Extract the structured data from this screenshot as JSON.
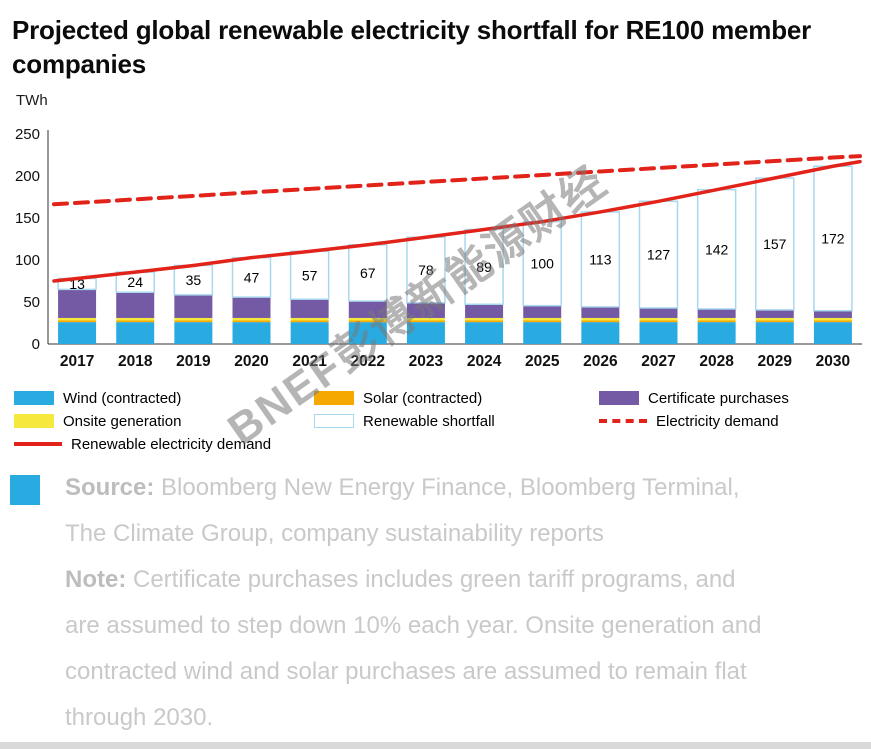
{
  "header": {
    "title": "Projected global renewable electricity shortfall for RE100 member companies"
  },
  "chart_data": {
    "type": "bar",
    "stacked": true,
    "title": "Projected global renewable electricity shortfall for RE100 member companies",
    "xlabel": "",
    "ylabel": "TWh",
    "ylim": [
      0,
      250
    ],
    "yticks": [
      0,
      50,
      100,
      150,
      200,
      250
    ],
    "grid": false,
    "legend_position": "bottom",
    "categories": [
      "2017",
      "2018",
      "2019",
      "2020",
      "2021",
      "2022",
      "2023",
      "2024",
      "2025",
      "2026",
      "2027",
      "2028",
      "2029",
      "2030"
    ],
    "series": [
      {
        "id": "wind",
        "name": "Wind (contracted)",
        "color": "#29ABE2",
        "values": [
          26,
          26,
          26,
          26,
          26,
          26,
          26,
          26,
          26,
          26,
          26,
          26,
          26,
          26
        ]
      },
      {
        "id": "solar",
        "name": "Solar (contracted)",
        "color": "#F5A800",
        "values": [
          2,
          2,
          2,
          2,
          2,
          2,
          2,
          2,
          2,
          2,
          2,
          2,
          2,
          2
        ]
      },
      {
        "id": "onsite",
        "name": "Onsite generation",
        "color": "#F7E83E",
        "values": [
          3,
          3,
          3,
          3,
          3,
          3,
          3,
          3,
          3,
          3,
          3,
          3,
          3,
          3
        ]
      },
      {
        "id": "certificates",
        "name": "Certificate purchases",
        "color": "#7459A5",
        "values": [
          34,
          30.6,
          27.5,
          24.8,
          22.3,
          20.1,
          18.1,
          16.3,
          14.6,
          13.2,
          11.9,
          10.7,
          9.6,
          8.6
        ]
      },
      {
        "id": "shortfall",
        "name": "Renewable shortfall",
        "color": "#FFFFFF",
        "stroke": "#A9D7EE",
        "values": [
          13,
          24,
          35,
          47,
          57,
          67,
          78,
          89,
          100,
          113,
          127,
          142,
          157,
          172
        ]
      }
    ],
    "bar_labels": [
      13,
      24,
      35,
      47,
      57,
      67,
      78,
      89,
      100,
      113,
      127,
      142,
      157,
      172
    ],
    "lines": [
      {
        "id": "renewable-demand",
        "name": "Renewable electricity demand",
        "style": "solid",
        "color": "#E2231A",
        "values": [
          78,
          85.6,
          93.5,
          102.8,
          110.3,
          118.1,
          127.1,
          136.3,
          145.6,
          157.2,
          169.9,
          183.7,
          197.6,
          211.6
        ]
      },
      {
        "id": "electricity-demand",
        "name": "Electricity demand",
        "style": "dashed",
        "color": "#E2231A",
        "values": [
          168,
          172.2,
          176.3,
          180.5,
          184.6,
          188.8,
          192.9,
          197.1,
          201.2,
          205.4,
          209.5,
          213.7,
          217.8,
          222
        ]
      }
    ]
  },
  "legend": {
    "items": [
      {
        "id": "wind",
        "label": "Wind (contracted)",
        "swatch": "rect",
        "color": "#29ABE2"
      },
      {
        "id": "solar",
        "label": "Solar (contracted)",
        "swatch": "rect",
        "color": "#F5A800"
      },
      {
        "id": "certificates",
        "label": "Certificate purchases",
        "swatch": "rect",
        "color": "#7459A5"
      },
      {
        "id": "onsite",
        "label": "Onsite generation",
        "swatch": "rect",
        "color": "#F7E83E"
      },
      {
        "id": "shortfall",
        "label": "Renewable shortfall",
        "swatch": "rect-outline",
        "color": "#A9D7EE"
      },
      {
        "id": "electricity-demand",
        "label": "Electricity demand",
        "swatch": "line-dashed",
        "color": "#E2231A"
      },
      {
        "id": "renewable-demand",
        "label": "Renewable electricity demand",
        "swatch": "line-solid",
        "color": "#E2231A"
      }
    ]
  },
  "watermark": {
    "text": "BNEF彭博新能源财经"
  },
  "footer": {
    "bullet_color": "#29ABE2",
    "source_label": "Source:",
    "source_text": " Bloomberg New Energy Finance, Bloomberg Terminal, The Climate Group, company sustainability reports",
    "note_label": "Note:",
    "note_text": " Certificate purchases includes green tariff programs, and are assumed to step down 10% each year. Onsite generation and contracted wind and solar purchases are assumed to remain flat through 2030."
  }
}
